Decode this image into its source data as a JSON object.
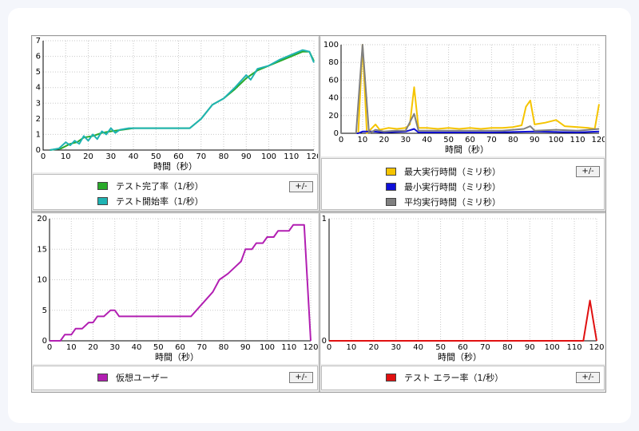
{
  "charts": [
    {
      "id": "c1",
      "type": "line",
      "xlabel": "時間（秒）",
      "xlim": [
        0,
        120
      ],
      "ylim": [
        0,
        7
      ],
      "xticks": [
        0,
        10,
        20,
        30,
        40,
        50,
        60,
        70,
        80,
        90,
        100,
        110,
        120
      ],
      "yticks": [
        0,
        1,
        2,
        3,
        4,
        5,
        6,
        7
      ],
      "toggle": "+/-",
      "series": [
        {
          "name": "テスト完了率（1/秒）",
          "color": "#2aaa2a",
          "points": [
            [
              3,
              0
            ],
            [
              8,
              0.1
            ],
            [
              12,
              0.4
            ],
            [
              15,
              0.5
            ],
            [
              18,
              0.8
            ],
            [
              22,
              0.9
            ],
            [
              26,
              1.1
            ],
            [
              30,
              1.2
            ],
            [
              35,
              1.3
            ],
            [
              40,
              1.4
            ],
            [
              50,
              1.4
            ],
            [
              60,
              1.4
            ],
            [
              65,
              1.4
            ],
            [
              70,
              2
            ],
            [
              75,
              2.9
            ],
            [
              80,
              3.3
            ],
            [
              85,
              3.9
            ],
            [
              90,
              4.6
            ],
            [
              95,
              5.1
            ],
            [
              100,
              5.4
            ],
            [
              105,
              5.7
            ],
            [
              110,
              6
            ],
            [
              115,
              6.3
            ],
            [
              118,
              6.3
            ],
            [
              120,
              5.7
            ]
          ]
        },
        {
          "name": "テスト開始率（1/秒）",
          "color": "#1fb3b3",
          "points": [
            [
              3,
              0
            ],
            [
              7,
              0.1
            ],
            [
              10,
              0.5
            ],
            [
              12,
              0.3
            ],
            [
              14,
              0.6
            ],
            [
              16,
              0.4
            ],
            [
              18,
              0.9
            ],
            [
              20,
              0.6
            ],
            [
              22,
              1
            ],
            [
              24,
              0.7
            ],
            [
              26,
              1.2
            ],
            [
              28,
              1
            ],
            [
              30,
              1.4
            ],
            [
              32,
              1.1
            ],
            [
              34,
              1.3
            ],
            [
              38,
              1.4
            ],
            [
              45,
              1.4
            ],
            [
              55,
              1.4
            ],
            [
              65,
              1.4
            ],
            [
              70,
              2
            ],
            [
              75,
              2.9
            ],
            [
              80,
              3.3
            ],
            [
              85,
              4
            ],
            [
              90,
              4.8
            ],
            [
              92,
              4.5
            ],
            [
              95,
              5.2
            ],
            [
              100,
              5.4
            ],
            [
              105,
              5.8
            ],
            [
              110,
              6.1
            ],
            [
              115,
              6.4
            ],
            [
              118,
              6.3
            ],
            [
              120,
              5.6
            ]
          ]
        }
      ]
    },
    {
      "id": "c2",
      "type": "line",
      "xlabel": "時間（秒）",
      "xlim": [
        0,
        120
      ],
      "ylim": [
        0,
        100
      ],
      "xticks": [
        0,
        10,
        20,
        30,
        40,
        50,
        60,
        70,
        80,
        90,
        100,
        110,
        120
      ],
      "yticks": [
        0,
        20,
        40,
        60,
        80,
        100
      ],
      "toggle": "+/-",
      "series": [
        {
          "name": "最大実行時間（ミリ秒）",
          "color": "#f5c400",
          "points": [
            [
              0,
              0
            ],
            [
              8,
              0
            ],
            [
              10,
              110
            ],
            [
              12,
              0
            ],
            [
              16,
              10
            ],
            [
              18,
              4
            ],
            [
              22,
              6
            ],
            [
              26,
              5
            ],
            [
              30,
              6
            ],
            [
              32,
              10
            ],
            [
              34,
              52
            ],
            [
              36,
              6
            ],
            [
              40,
              6
            ],
            [
              45,
              5
            ],
            [
              50,
              6
            ],
            [
              55,
              5
            ],
            [
              60,
              6
            ],
            [
              65,
              5
            ],
            [
              70,
              6
            ],
            [
              75,
              6
            ],
            [
              80,
              7
            ],
            [
              84,
              9
            ],
            [
              86,
              30
            ],
            [
              88,
              37
            ],
            [
              90,
              10
            ],
            [
              95,
              12
            ],
            [
              100,
              15
            ],
            [
              104,
              8
            ],
            [
              110,
              7
            ],
            [
              115,
              6
            ],
            [
              118,
              5
            ],
            [
              120,
              33
            ]
          ]
        },
        {
          "name": "最小実行時間（ミリ秒）",
          "color": "#1010d8",
          "points": [
            [
              0,
              0
            ],
            [
              8,
              0
            ],
            [
              10,
              2
            ],
            [
              15,
              2
            ],
            [
              20,
              1
            ],
            [
              30,
              2
            ],
            [
              34,
              5
            ],
            [
              36,
              1
            ],
            [
              50,
              1
            ],
            [
              70,
              1
            ],
            [
              90,
              2
            ],
            [
              110,
              1
            ],
            [
              120,
              2
            ]
          ]
        },
        {
          "name": "平均実行時間（ミリ秒）",
          "color": "#808080",
          "points": [
            [
              0,
              0
            ],
            [
              7,
              0
            ],
            [
              10,
              110
            ],
            [
              13,
              0
            ],
            [
              16,
              4
            ],
            [
              20,
              2
            ],
            [
              25,
              3
            ],
            [
              30,
              3
            ],
            [
              34,
              22
            ],
            [
              36,
              3
            ],
            [
              45,
              3
            ],
            [
              55,
              3
            ],
            [
              65,
              3
            ],
            [
              75,
              3
            ],
            [
              80,
              4
            ],
            [
              85,
              5
            ],
            [
              88,
              8
            ],
            [
              90,
              3
            ],
            [
              100,
              4
            ],
            [
              110,
              3
            ],
            [
              120,
              5
            ]
          ]
        }
      ]
    },
    {
      "id": "c3",
      "type": "line",
      "xlabel": "時間（秒）",
      "xlim": [
        0,
        120
      ],
      "ylim": [
        0,
        20
      ],
      "xticks": [
        0,
        10,
        20,
        30,
        40,
        50,
        60,
        70,
        80,
        90,
        100,
        110,
        120
      ],
      "yticks": [
        0,
        5,
        10,
        15,
        20
      ],
      "toggle": "+/-",
      "series": [
        {
          "name": "仮想ユーザー",
          "color": "#b21fb2",
          "points": [
            [
              0,
              0
            ],
            [
              5,
              0
            ],
            [
              7,
              1
            ],
            [
              10,
              1
            ],
            [
              12,
              2
            ],
            [
              15,
              2
            ],
            [
              18,
              3
            ],
            [
              20,
              3
            ],
            [
              22,
              4
            ],
            [
              25,
              4
            ],
            [
              28,
              5
            ],
            [
              30,
              5
            ],
            [
              32,
              4
            ],
            [
              60,
              4
            ],
            [
              65,
              4
            ],
            [
              70,
              6
            ],
            [
              75,
              8
            ],
            [
              78,
              10
            ],
            [
              82,
              11
            ],
            [
              85,
              12
            ],
            [
              88,
              13
            ],
            [
              90,
              15
            ],
            [
              93,
              15
            ],
            [
              95,
              16
            ],
            [
              98,
              16
            ],
            [
              100,
              17
            ],
            [
              103,
              17
            ],
            [
              105,
              18
            ],
            [
              110,
              18
            ],
            [
              112,
              19
            ],
            [
              117,
              19
            ],
            [
              120,
              0
            ]
          ]
        }
      ]
    },
    {
      "id": "c4",
      "type": "line",
      "xlabel": "時間（秒）",
      "xlim": [
        0,
        120
      ],
      "ylim": [
        0,
        1
      ],
      "xticks": [
        0,
        10,
        20,
        30,
        40,
        50,
        60,
        70,
        80,
        90,
        100,
        110,
        120
      ],
      "yticks": [
        0,
        1
      ],
      "toggle": "+/-",
      "series": [
        {
          "name": "テスト エラー率（1/秒）",
          "color": "#e01010",
          "points": [
            [
              0,
              0
            ],
            [
              114,
              0
            ],
            [
              117,
              0.33
            ],
            [
              120,
              0
            ]
          ]
        }
      ]
    }
  ]
}
